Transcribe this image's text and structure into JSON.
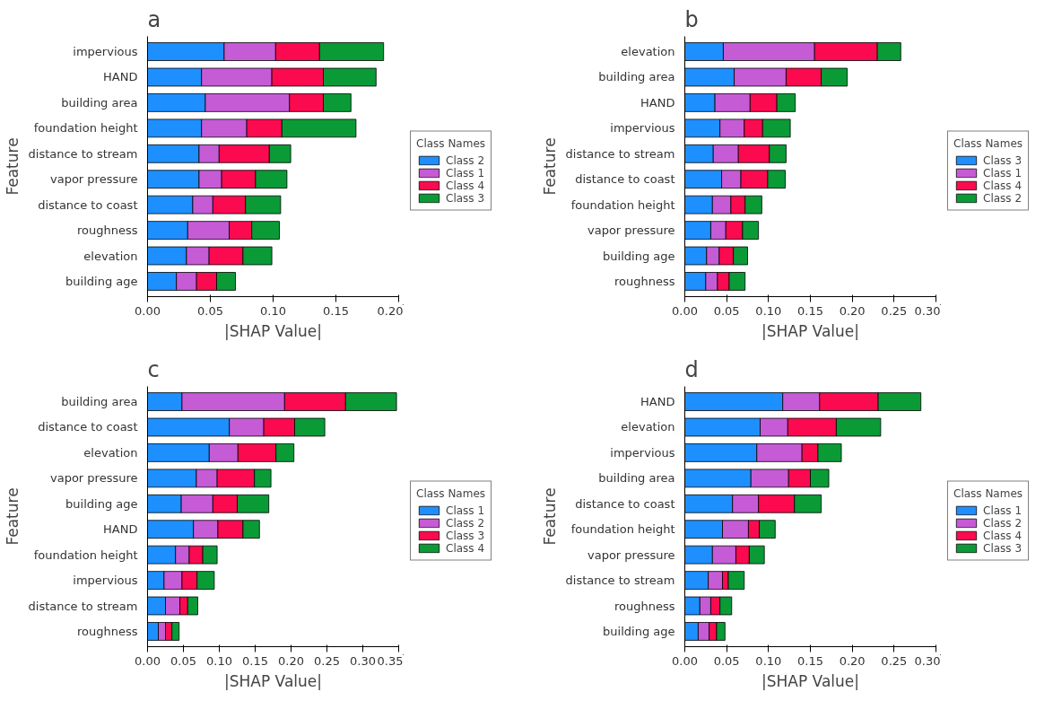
{
  "chart_data": [
    {
      "type": "bar",
      "orientation": "horizontal",
      "stacked": true,
      "title": "a",
      "xlabel": "|SHAP Value|",
      "ylabel": "Feature",
      "legend_title": "Class Names",
      "legend": "right",
      "grid": false,
      "categories": [
        "impervious",
        "HAND",
        "building area",
        "foundation height",
        "distance to stream",
        "vapor pressure",
        "distance to coast",
        "roughness",
        "elevation",
        "building age"
      ],
      "xlim": [
        0,
        0.2
      ],
      "xticks": [
        {
          "value": 0,
          "label": "0.00"
        },
        {
          "value": 0.05,
          "label": "0.05"
        },
        {
          "value": 0.1,
          "label": "0.10"
        },
        {
          "value": 0.15,
          "label": "0.15"
        },
        {
          "value": 0.2,
          "label": "0.20"
        }
      ],
      "series": [
        {
          "name": "Class 2",
          "color": "#1e8fff",
          "values": [
            0.061,
            0.043,
            0.046,
            0.043,
            0.041,
            0.041,
            0.036,
            0.032,
            0.031,
            0.023
          ]
        },
        {
          "name": "Class 1",
          "color": "#c65bd6",
          "values": [
            0.041,
            0.056,
            0.067,
            0.036,
            0.016,
            0.018,
            0.016,
            0.033,
            0.018,
            0.016
          ]
        },
        {
          "name": "Class 4",
          "color": "#fb0a4f",
          "values": [
            0.035,
            0.041,
            0.027,
            0.028,
            0.04,
            0.027,
            0.026,
            0.018,
            0.027,
            0.016
          ]
        },
        {
          "name": "Class 3",
          "color": "#0a9b37",
          "values": [
            0.051,
            0.042,
            0.022,
            0.059,
            0.017,
            0.025,
            0.028,
            0.022,
            0.023,
            0.015
          ]
        }
      ]
    },
    {
      "type": "bar",
      "orientation": "horizontal",
      "stacked": true,
      "title": "b",
      "xlabel": "|SHAP Value|",
      "ylabel": "Feature",
      "legend_title": "Class Names",
      "legend": "right",
      "grid": false,
      "categories": [
        "elevation",
        "building area",
        "HAND",
        "impervious",
        "distance to stream",
        "distance to coast",
        "foundation height",
        "vapor pressure",
        "building age",
        "roughness"
      ],
      "xlim": [
        0,
        0.3
      ],
      "xticks": [
        {
          "value": 0,
          "label": "0.00"
        },
        {
          "value": 0.05,
          "label": "0.05"
        },
        {
          "value": 0.1,
          "label": "0.10"
        },
        {
          "value": 0.15,
          "label": "0.15"
        },
        {
          "value": 0.2,
          "label": "0.20"
        },
        {
          "value": 0.25,
          "label": "0.25"
        },
        {
          "value": 0.3,
          "label": "0.30"
        }
      ],
      "series": [
        {
          "name": "Class 3",
          "color": "#1e8fff",
          "values": [
            0.046,
            0.059,
            0.036,
            0.042,
            0.034,
            0.044,
            0.033,
            0.031,
            0.026,
            0.025
          ]
        },
        {
          "name": "Class 1",
          "color": "#c65bd6",
          "values": [
            0.109,
            0.062,
            0.042,
            0.029,
            0.03,
            0.023,
            0.022,
            0.018,
            0.015,
            0.014
          ]
        },
        {
          "name": "Class 4",
          "color": "#fb0a4f",
          "values": [
            0.075,
            0.042,
            0.032,
            0.022,
            0.037,
            0.032,
            0.017,
            0.02,
            0.017,
            0.014
          ]
        },
        {
          "name": "Class 2",
          "color": "#0a9b37",
          "values": [
            0.028,
            0.031,
            0.022,
            0.033,
            0.02,
            0.021,
            0.02,
            0.019,
            0.017,
            0.019
          ]
        }
      ]
    },
    {
      "type": "bar",
      "orientation": "horizontal",
      "stacked": true,
      "title": "c",
      "xlabel": "|SHAP Value|",
      "ylabel": "Feature",
      "legend_title": "Class Names",
      "legend": "right",
      "grid": false,
      "categories": [
        "building area",
        "distance to coast",
        "elevation",
        "vapor pressure",
        "building age",
        "HAND",
        "foundation height",
        "impervious",
        "distance to stream",
        "roughness"
      ],
      "xlim": [
        0,
        0.35
      ],
      "xticks": [
        {
          "value": 0,
          "label": "0.00"
        },
        {
          "value": 0.05,
          "label": "0.05"
        },
        {
          "value": 0.1,
          "label": "0.10"
        },
        {
          "value": 0.15,
          "label": "0.15"
        },
        {
          "value": 0.2,
          "label": "0.20"
        },
        {
          "value": 0.25,
          "label": "0.25"
        },
        {
          "value": 0.3,
          "label": "0.30"
        },
        {
          "value": 0.35,
          "label": "0.35"
        }
      ],
      "series": [
        {
          "name": "Class 1",
          "color": "#1e8fff",
          "values": [
            0.048,
            0.114,
            0.086,
            0.068,
            0.047,
            0.064,
            0.039,
            0.023,
            0.025,
            0.015
          ]
        },
        {
          "name": "Class 2",
          "color": "#c65bd6",
          "values": [
            0.143,
            0.048,
            0.04,
            0.029,
            0.044,
            0.034,
            0.019,
            0.025,
            0.02,
            0.01
          ]
        },
        {
          "name": "Class 3",
          "color": "#fb0a4f",
          "values": [
            0.085,
            0.043,
            0.053,
            0.052,
            0.034,
            0.035,
            0.019,
            0.021,
            0.011,
            0.009
          ]
        },
        {
          "name": "Class 4",
          "color": "#0a9b37",
          "values": [
            0.071,
            0.042,
            0.025,
            0.023,
            0.044,
            0.023,
            0.02,
            0.024,
            0.014,
            0.01
          ]
        }
      ]
    },
    {
      "type": "bar",
      "orientation": "horizontal",
      "stacked": true,
      "title": "d",
      "xlabel": "|SHAP Value|",
      "ylabel": "Feature",
      "legend_title": "Class Names",
      "legend": "right",
      "grid": false,
      "categories": [
        "HAND",
        "elevation",
        "impervious",
        "building area",
        "distance to coast",
        "foundation height",
        "vapor pressure",
        "distance to stream",
        "roughness",
        "building age"
      ],
      "xlim": [
        0,
        0.3
      ],
      "xticks": [
        {
          "value": 0,
          "label": "0.00"
        },
        {
          "value": 0.05,
          "label": "0.05"
        },
        {
          "value": 0.1,
          "label": "0.10"
        },
        {
          "value": 0.15,
          "label": "0.15"
        },
        {
          "value": 0.2,
          "label": "0.20"
        },
        {
          "value": 0.25,
          "label": "0.25"
        },
        {
          "value": 0.3,
          "label": "0.30"
        }
      ],
      "series": [
        {
          "name": "Class 1",
          "color": "#1e8fff",
          "values": [
            0.117,
            0.09,
            0.086,
            0.079,
            0.057,
            0.045,
            0.033,
            0.028,
            0.018,
            0.016
          ]
        },
        {
          "name": "Class 2",
          "color": "#c65bd6",
          "values": [
            0.044,
            0.033,
            0.054,
            0.045,
            0.031,
            0.031,
            0.028,
            0.017,
            0.013,
            0.013
          ]
        },
        {
          "name": "Class 4",
          "color": "#fb0a4f",
          "values": [
            0.07,
            0.058,
            0.019,
            0.026,
            0.043,
            0.013,
            0.016,
            0.007,
            0.011,
            0.009
          ]
        },
        {
          "name": "Class 3",
          "color": "#0a9b37",
          "values": [
            0.051,
            0.053,
            0.028,
            0.022,
            0.032,
            0.019,
            0.018,
            0.019,
            0.014,
            0.01
          ]
        }
      ]
    }
  ]
}
